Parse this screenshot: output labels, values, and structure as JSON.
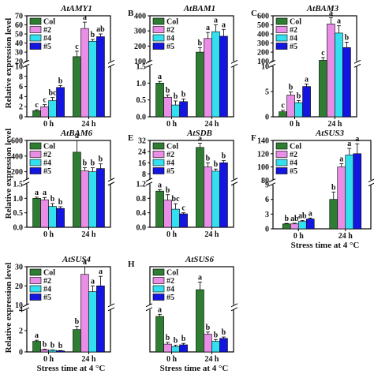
{
  "figure": {
    "ylabel": "Relative expression level",
    "xlabel": "Stress time at 4 °C"
  },
  "colors": {
    "Col": "#2e7d32",
    "#2": "#e98de6",
    "#4": "#33e0f0",
    "#5": "#1515e0"
  },
  "chart_data": [
    {
      "type": "bar",
      "panel": "A",
      "title": "AtAMY1",
      "categories": [
        "0 h",
        "24 h"
      ],
      "series": [
        {
          "name": "Col",
          "values": [
            1.2,
            25
          ]
        },
        {
          "name": "#2",
          "values": [
            2,
            56
          ]
        },
        {
          "name": "#4",
          "values": [
            3.2,
            42
          ]
        },
        {
          "name": "#5",
          "values": [
            5.8,
            47
          ]
        }
      ],
      "errors": [
        [
          0.2,
          0.4,
          0.6,
          0.4
        ],
        [
          6,
          7,
          2,
          3
        ]
      ],
      "letters": [
        [
          "c",
          "c",
          "bc",
          "b"
        ],
        [
          "c",
          "a",
          "b",
          "ab"
        ]
      ],
      "ytick_labels": [
        "0",
        "2",
        "4",
        "6",
        "8",
        "10",
        "20",
        "30",
        "40",
        "50",
        "60",
        "70"
      ],
      "ylim": [
        0,
        70
      ],
      "axis_break": [
        10,
        20
      ]
    },
    {
      "type": "bar",
      "panel": "B",
      "title": "AtBAM1",
      "categories": [
        "0 h",
        "24 h"
      ],
      "series": [
        {
          "name": "Col",
          "values": [
            1,
            160
          ]
        },
        {
          "name": "#2",
          "values": [
            0.58,
            250
          ]
        },
        {
          "name": "#4",
          "values": [
            0.35,
            295
          ]
        },
        {
          "name": "#5",
          "values": [
            0.45,
            265
          ]
        }
      ],
      "errors": [
        [
          0.05,
          0.07,
          0.12,
          0.08
        ],
        [
          30,
          40,
          45,
          45
        ]
      ],
      "letters": [
        [
          "a",
          "b",
          "b",
          "b"
        ],
        [
          "b",
          "a",
          "a",
          "a"
        ]
      ],
      "ytick_labels": [
        "0.0",
        "0.5",
        "1.0",
        "1.5",
        "100",
        "200",
        "300",
        "400"
      ],
      "ylim": [
        0,
        400
      ],
      "axis_break": [
        1.5,
        100
      ]
    },
    {
      "type": "bar",
      "panel": "C",
      "title": "AtBAM3",
      "categories": [
        "0 h",
        "24 h"
      ],
      "series": [
        {
          "name": "Col",
          "values": [
            1,
            110
          ]
        },
        {
          "name": "#2",
          "values": [
            4.3,
            510
          ]
        },
        {
          "name": "#4",
          "values": [
            2.8,
            410
          ]
        },
        {
          "name": "#5",
          "values": [
            6,
            250
          ]
        }
      ],
      "errors": [
        [
          0.3,
          0.6,
          0.4,
          0.5
        ],
        [
          30,
          70,
          80,
          60
        ]
      ],
      "letters": [
        [
          "c",
          "b",
          "b",
          "a"
        ],
        [
          "c",
          "a",
          "a",
          "b"
        ]
      ],
      "ytick_labels": [
        "0",
        "5",
        "10",
        "100",
        "200",
        "300",
        "400",
        "500",
        "600"
      ],
      "ylim": [
        0,
        600
      ],
      "axis_break": [
        10,
        100
      ]
    },
    {
      "type": "bar",
      "panel": "D",
      "title": "AtBAM6",
      "categories": [
        "0 h",
        "24 h"
      ],
      "series": [
        {
          "name": "Col",
          "values": [
            1,
            450
          ]
        },
        {
          "name": "#2",
          "values": [
            0.95,
            210
          ]
        },
        {
          "name": "#4",
          "values": [
            0.72,
            200
          ]
        },
        {
          "name": "#5",
          "values": [
            0.65,
            240
          ]
        }
      ],
      "errors": [
        [
          0.04,
          0.08,
          0.1,
          0.06
        ],
        [
          150,
          40,
          50,
          60
        ]
      ],
      "letters": [
        [
          "a",
          "a",
          "b",
          "b"
        ],
        [
          "a",
          "b",
          "b",
          "b"
        ]
      ],
      "ytick_labels": [
        "0.0",
        "0.5",
        "1.0",
        "1.5",
        "200",
        "400",
        "600"
      ],
      "ylim": [
        0,
        600
      ],
      "axis_break": [
        1.5,
        100
      ]
    },
    {
      "type": "bar",
      "panel": "E",
      "title": "AtSDB",
      "categories": [
        "0 h",
        "24 h"
      ],
      "series": [
        {
          "name": "Col",
          "values": [
            1,
            27
          ]
        },
        {
          "name": "#2",
          "values": [
            0.75,
            13
          ]
        },
        {
          "name": "#4",
          "values": [
            0.5,
            10
          ]
        },
        {
          "name": "#5",
          "values": [
            0.37,
            16
          ]
        }
      ],
      "errors": [
        [
          0.04,
          0.15,
          0.15,
          0.03
        ],
        [
          3,
          3,
          1.5,
          1.5
        ]
      ],
      "letters": [
        [
          "a",
          "b",
          "bc",
          "c"
        ],
        [
          "a",
          "b",
          "b",
          "b"
        ]
      ],
      "ytick_labels": [
        "0.0",
        "0.4",
        "0.8",
        "1.2",
        "8",
        "16",
        "24",
        "32"
      ],
      "ylim": [
        0,
        32
      ],
      "axis_break": [
        1.2,
        4
      ]
    },
    {
      "type": "bar",
      "panel": "F",
      "title": "AtSUS3",
      "categories": [
        "0 h",
        "24 h"
      ],
      "series": [
        {
          "name": "Col",
          "values": [
            1,
            6
          ]
        },
        {
          "name": "#2",
          "values": [
            1,
            100
          ]
        },
        {
          "name": "#4",
          "values": [
            1.5,
            118
          ]
        },
        {
          "name": "#5",
          "values": [
            2,
            120
          ]
        }
      ],
      "errors": [
        [
          0.1,
          0.15,
          0.2,
          0.2
        ],
        [
          1.5,
          5,
          10,
          15
        ]
      ],
      "letters": [
        [
          "b",
          "ab",
          "ab",
          "a"
        ],
        [
          "b",
          "a",
          "a",
          "a"
        ]
      ],
      "ytick_labels": [
        "0",
        "3",
        "6",
        "9",
        "80",
        "100",
        "120",
        "140"
      ],
      "ylim": [
        0,
        140
      ],
      "axis_break": [
        9,
        80
      ]
    },
    {
      "type": "bar",
      "panel": "G",
      "title": "AtSUS4",
      "categories": [
        "0 h",
        "24 h"
      ],
      "series": [
        {
          "name": "Col",
          "values": [
            1,
            2.1
          ]
        },
        {
          "name": "#2",
          "values": [
            0.2,
            26
          ]
        },
        {
          "name": "#4",
          "values": [
            0.15,
            17
          ]
        },
        {
          "name": "#5",
          "values": [
            0.1,
            20
          ]
        }
      ],
      "errors": [
        [
          0.1,
          0.05,
          0.03,
          0.03
        ],
        [
          0.3,
          4,
          3,
          5
        ]
      ],
      "letters": [
        [
          "a",
          "b",
          "b",
          "b"
        ],
        [
          "b",
          "a",
          "a",
          "a"
        ]
      ],
      "ytick_labels": [
        "0",
        "2",
        "4",
        "10",
        "20",
        "30"
      ],
      "ylim": [
        0,
        30
      ],
      "axis_break": [
        4,
        10
      ]
    },
    {
      "type": "bar",
      "panel": "H",
      "title": "AtSUS6",
      "categories": [
        "0 h",
        "24 h"
      ],
      "series": [
        {
          "name": "Col",
          "values": [
            1,
            3.4
          ]
        },
        {
          "name": "#2",
          "values": [
            0.22,
            0.5
          ]
        },
        {
          "name": "#4",
          "values": [
            0.15,
            0.3
          ]
        },
        {
          "name": "#5",
          "values": [
            0.2,
            0.38
          ]
        }
      ],
      "errors": [
        [
          0.06,
          0.05,
          0.04,
          0.04
        ],
        [
          0.2,
          0.06,
          0.05,
          0.04
        ]
      ],
      "letters": [
        [
          "a",
          "b",
          "b",
          "b"
        ],
        [
          "a",
          "b",
          "b",
          "b"
        ]
      ],
      "ytick_labels": [],
      "ylim": [
        0,
        4
      ],
      "axis_break": [
        1.2,
        3
      ]
    }
  ]
}
